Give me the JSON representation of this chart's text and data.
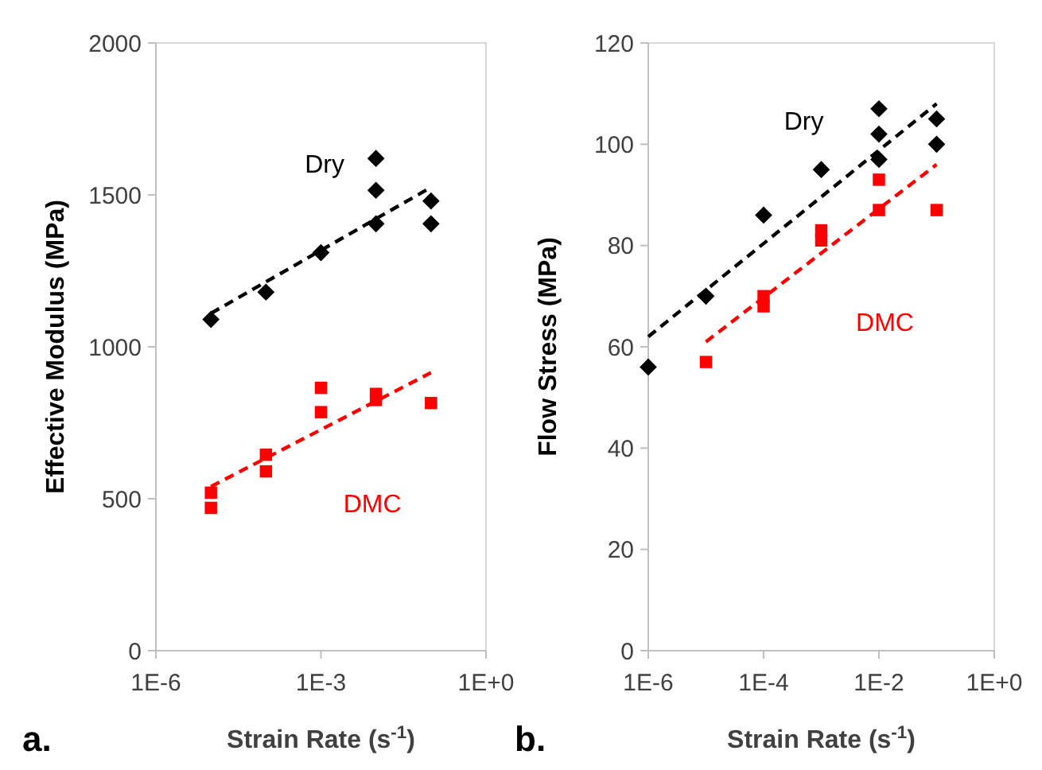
{
  "chart_data": [
    {
      "type": "scatter",
      "xlabel": "Strain Rate (s$^{-1}$)",
      "ylabel": "Effective Modulus (MPa)",
      "log": "x",
      "xlim": [
        1e-06,
        1
      ],
      "xticks": [
        {
          "value": 1e-06,
          "label": "1E-6"
        },
        {
          "value": 0.001,
          "label": "1E-3"
        },
        {
          "value": 1,
          "label": "1E+0"
        }
      ],
      "ylim": [
        0,
        2000
      ],
      "yticks": [
        0,
        500,
        1000,
        1500,
        2000
      ],
      "grid": false,
      "legend": false,
      "annotations": [
        "a."
      ],
      "series": [
        {
          "name": "Dry",
          "marker": "diamond",
          "color": "#000000",
          "x": [
            1e-05,
            0.0001,
            0.001,
            0.01,
            0.01,
            0.01,
            0.1,
            0.1
          ],
          "values": [
            1090,
            1180,
            1310,
            1620,
            1515,
            1405,
            1480,
            1405
          ]
        },
        {
          "name": "DMC",
          "marker": "square",
          "color": "#ff0000",
          "x": [
            1e-05,
            1e-05,
            0.0001,
            0.0001,
            0.001,
            0.001,
            0.01,
            0.01,
            0.1
          ],
          "values": [
            520,
            470,
            645,
            590,
            865,
            785,
            845,
            825,
            815
          ]
        },
        {
          "type": "line",
          "line_style": "dashed",
          "marker": "none",
          "color": "#000000",
          "x": [
            1e-05,
            0.1
          ],
          "values": [
            1110,
            1525
          ]
        },
        {
          "type": "line",
          "line_style": "dashed",
          "marker": "none",
          "color": "#ff0000",
          "x": [
            1e-05,
            0.1
          ],
          "values": [
            540,
            915
          ]
        }
      ]
    },
    {
      "type": "scatter",
      "xlabel": "Strain Rate (s$^{-1}$)",
      "ylabel": "Flow Stress (MPa)",
      "log": "x",
      "xlim": [
        1e-06,
        1
      ],
      "xticks": [
        {
          "value": 1e-06,
          "label": "1E-6"
        },
        {
          "value": 0.0001,
          "label": "1E-4"
        },
        {
          "value": 0.01,
          "label": "1E-2"
        },
        {
          "value": 1,
          "label": "1E+0"
        }
      ],
      "ylim": [
        0,
        120
      ],
      "yticks": [
        0,
        20,
        40,
        60,
        80,
        100,
        120
      ],
      "grid": false,
      "legend": false,
      "annotations": [
        "b."
      ],
      "series": [
        {
          "name": "Dry",
          "marker": "diamond",
          "color": "#000000",
          "x": [
            1e-06,
            1e-05,
            0.0001,
            0.001,
            0.01,
            0.01,
            0.01,
            0.1,
            0.1
          ],
          "values": [
            56,
            70,
            86,
            95,
            107,
            102,
            97,
            105,
            100
          ]
        },
        {
          "name": "DMC",
          "marker": "square",
          "color": "#ff0000",
          "x": [
            1e-05,
            0.0001,
            0.0001,
            0.001,
            0.001,
            0.01,
            0.01,
            0.1
          ],
          "values": [
            57,
            70,
            68,
            83,
            81,
            93,
            87,
            87
          ]
        },
        {
          "type": "line",
          "line_style": "dashed",
          "marker": "none",
          "color": "#000000",
          "x": [
            1e-06,
            0.1
          ],
          "values": [
            62,
            108
          ]
        },
        {
          "type": "line",
          "line_style": "dashed",
          "marker": "none",
          "color": "#ff0000",
          "x": [
            1e-05,
            0.1
          ],
          "values": [
            61,
            96
          ]
        }
      ]
    }
  ]
}
